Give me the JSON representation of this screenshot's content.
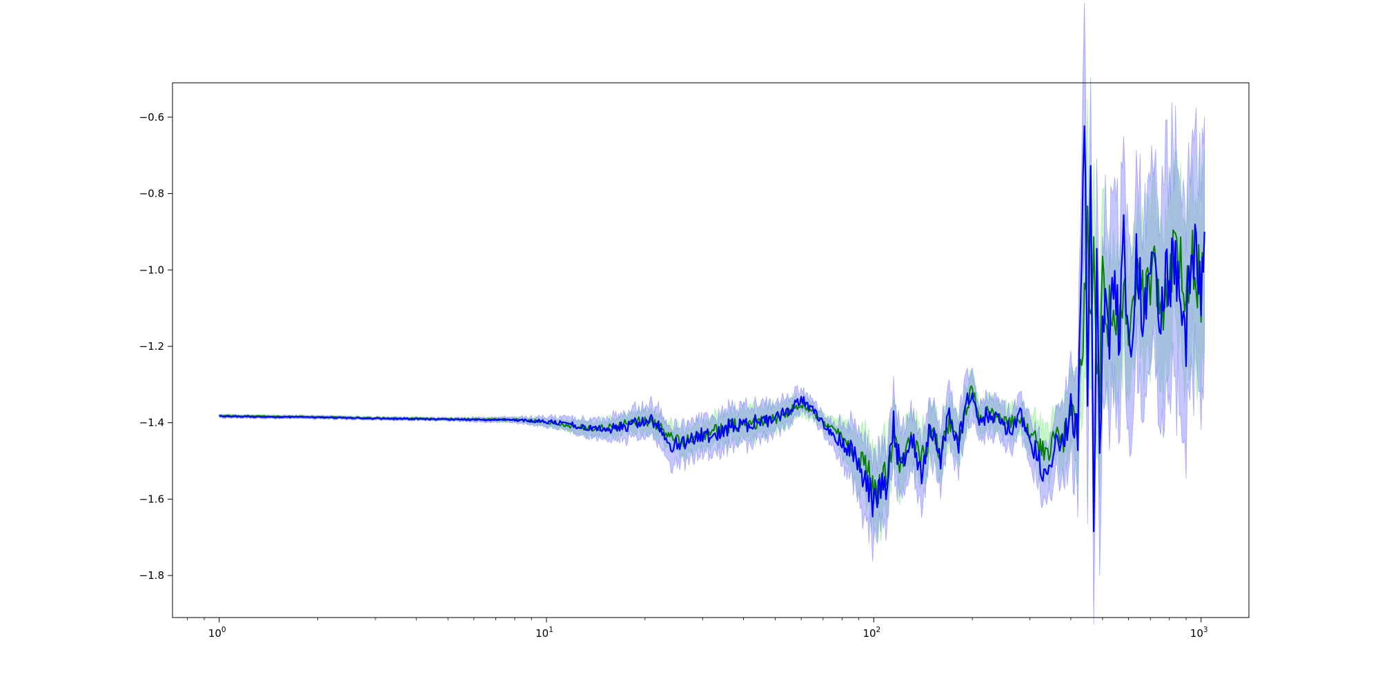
{
  "chart_data": {
    "type": "line",
    "title": "",
    "xlabel": "",
    "ylabel": "",
    "x_scale": "log",
    "xlim": [
      0.72,
      1400
    ],
    "ylim": [
      -1.91,
      -0.51
    ],
    "grid": false,
    "legend": "none",
    "x_ticks": [
      {
        "value": 1,
        "base": "10",
        "exp": "0"
      },
      {
        "value": 10,
        "base": "10",
        "exp": "1"
      },
      {
        "value": 100,
        "base": "10",
        "exp": "2"
      },
      {
        "value": 1000,
        "base": "10",
        "exp": "3"
      }
    ],
    "y_ticks": [
      {
        "value": -0.6,
        "label": "−0.6"
      },
      {
        "value": -0.8,
        "label": "−0.8"
      },
      {
        "value": -1.0,
        "label": "−1.0"
      },
      {
        "value": -1.2,
        "label": "−1.2"
      },
      {
        "value": -1.4,
        "label": "−1.4"
      },
      {
        "value": -1.6,
        "label": "−1.6"
      },
      {
        "value": -1.8,
        "label": "−1.8"
      }
    ],
    "series": [
      {
        "color": "#008000",
        "band_color": "#90ee90",
        "x": [
          1,
          2,
          3,
          5,
          8,
          10,
          12,
          14,
          16,
          18,
          20,
          22,
          24,
          26,
          28,
          30,
          33,
          36,
          40,
          45,
          50,
          55,
          60,
          65,
          70,
          75,
          80,
          85,
          90,
          95,
          100,
          105,
          110,
          115,
          120,
          130,
          140,
          150,
          160,
          170,
          180,
          190,
          200,
          210,
          220,
          240,
          260,
          280,
          300,
          320,
          340,
          360,
          380,
          400,
          420,
          440,
          450,
          460,
          470,
          480,
          490,
          500,
          520,
          540,
          560,
          580,
          600,
          640,
          680,
          720,
          760,
          800,
          850,
          900,
          950,
          1000,
          1024
        ],
        "y": [
          -1.382,
          -1.385,
          -1.388,
          -1.39,
          -1.392,
          -1.398,
          -1.41,
          -1.415,
          -1.41,
          -1.4,
          -1.395,
          -1.41,
          -1.44,
          -1.45,
          -1.44,
          -1.43,
          -1.42,
          -1.41,
          -1.4,
          -1.4,
          -1.39,
          -1.37,
          -1.35,
          -1.37,
          -1.4,
          -1.42,
          -1.44,
          -1.46,
          -1.49,
          -1.52,
          -1.58,
          -1.57,
          -1.52,
          -1.43,
          -1.5,
          -1.45,
          -1.5,
          -1.42,
          -1.48,
          -1.4,
          -1.45,
          -1.38,
          -1.31,
          -1.39,
          -1.37,
          -1.39,
          -1.4,
          -1.39,
          -1.42,
          -1.46,
          -1.48,
          -1.43,
          -1.45,
          -1.38,
          -1.4,
          -1.1,
          -0.93,
          -1.1,
          -0.98,
          -1.2,
          -1.3,
          -1.05,
          -1.12,
          -1.08,
          -1.16,
          -1.05,
          -1.12,
          -1.0,
          -1.08,
          -0.98,
          -1.1,
          -1.02,
          -0.92,
          -1.1,
          -0.96,
          -1.05,
          -0.9
        ],
        "err": [
          0.004,
          0.004,
          0.004,
          0.004,
          0.006,
          0.01,
          0.015,
          0.02,
          0.022,
          0.025,
          0.03,
          0.032,
          0.035,
          0.035,
          0.035,
          0.035,
          0.038,
          0.04,
          0.04,
          0.04,
          0.035,
          0.03,
          0.025,
          0.02,
          0.02,
          0.025,
          0.04,
          0.06,
          0.07,
          0.09,
          0.1,
          0.1,
          0.09,
          0.08,
          0.08,
          0.07,
          0.07,
          0.07,
          0.06,
          0.06,
          0.06,
          0.06,
          0.05,
          0.04,
          0.04,
          0.04,
          0.04,
          0.04,
          0.05,
          0.06,
          0.06,
          0.07,
          0.08,
          0.1,
          0.12,
          0.2,
          0.25,
          0.2,
          0.2,
          0.2,
          0.22,
          0.2,
          0.18,
          0.18,
          0.18,
          0.18,
          0.18,
          0.18,
          0.18,
          0.18,
          0.2,
          0.2,
          0.2,
          0.2,
          0.22,
          0.22,
          0.22
        ]
      },
      {
        "color": "#0000ff",
        "band_color": "#7f7fff",
        "x": [
          1,
          2,
          3,
          5,
          8,
          10,
          12,
          14,
          16,
          18,
          20,
          22,
          24,
          26,
          28,
          30,
          33,
          36,
          40,
          45,
          50,
          55,
          60,
          65,
          70,
          75,
          80,
          85,
          90,
          95,
          100,
          105,
          110,
          115,
          120,
          130,
          140,
          150,
          160,
          170,
          180,
          190,
          200,
          210,
          220,
          240,
          260,
          280,
          300,
          320,
          340,
          360,
          380,
          400,
          420,
          440,
          450,
          460,
          470,
          480,
          490,
          500,
          520,
          540,
          560,
          580,
          600,
          640,
          680,
          720,
          760,
          800,
          850,
          900,
          950,
          1000,
          1024
        ],
        "y": [
          -1.383,
          -1.386,
          -1.389,
          -1.391,
          -1.393,
          -1.397,
          -1.405,
          -1.42,
          -1.415,
          -1.405,
          -1.39,
          -1.4,
          -1.455,
          -1.455,
          -1.445,
          -1.435,
          -1.43,
          -1.41,
          -1.405,
          -1.395,
          -1.39,
          -1.365,
          -1.34,
          -1.365,
          -1.4,
          -1.43,
          -1.45,
          -1.47,
          -1.5,
          -1.56,
          -1.62,
          -1.58,
          -1.55,
          -1.4,
          -1.52,
          -1.44,
          -1.53,
          -1.41,
          -1.5,
          -1.38,
          -1.47,
          -1.36,
          -1.32,
          -1.4,
          -1.38,
          -1.39,
          -1.42,
          -1.38,
          -1.44,
          -1.5,
          -1.55,
          -1.42,
          -1.47,
          -1.35,
          -1.42,
          -0.67,
          -1.3,
          -0.82,
          -1.66,
          -0.95,
          -1.6,
          -1.1,
          -1.22,
          -1.0,
          -1.2,
          -0.95,
          -1.17,
          -0.98,
          -1.13,
          -0.95,
          -1.15,
          -0.98,
          -1.05,
          -1.12,
          -0.98,
          -1.1,
          -0.9
        ],
        "err": [
          0.004,
          0.004,
          0.004,
          0.004,
          0.007,
          0.012,
          0.018,
          0.025,
          0.03,
          0.035,
          0.04,
          0.045,
          0.05,
          0.05,
          0.05,
          0.05,
          0.05,
          0.05,
          0.05,
          0.045,
          0.04,
          0.035,
          0.03,
          0.025,
          0.025,
          0.03,
          0.05,
          0.07,
          0.09,
          0.1,
          0.11,
          0.1,
          0.1,
          0.09,
          0.09,
          0.08,
          0.08,
          0.08,
          0.07,
          0.07,
          0.07,
          0.07,
          0.06,
          0.05,
          0.05,
          0.05,
          0.05,
          0.05,
          0.06,
          0.07,
          0.07,
          0.08,
          0.1,
          0.12,
          0.15,
          0.3,
          0.3,
          0.25,
          0.25,
          0.25,
          0.28,
          0.25,
          0.25,
          0.25,
          0.25,
          0.25,
          0.25,
          0.25,
          0.25,
          0.25,
          0.3,
          0.3,
          0.3,
          0.3,
          0.3,
          0.3,
          0.3
        ]
      }
    ]
  }
}
